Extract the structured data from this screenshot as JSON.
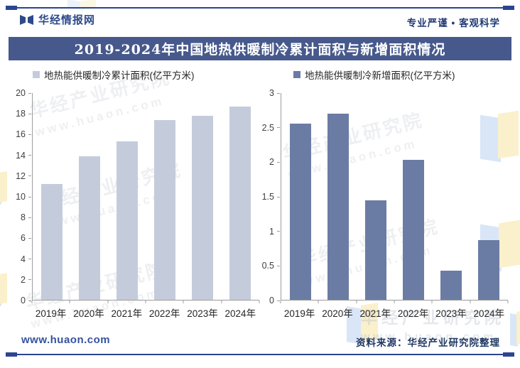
{
  "header": {
    "brand": "华经情报网",
    "tagline": "专业严谨 • 客观科学"
  },
  "banner": {
    "title": "2019-2024年中国地热供暖制冷累计面积与新增面积情况"
  },
  "watermark": {
    "org": "华经产业研究院",
    "url": "www.huaon.com"
  },
  "footer": {
    "website": "www.huaon.com",
    "source": "资料来源：华经产业研究院整理"
  },
  "colors": {
    "banner_bg": "#47598C",
    "rule": "#2B4590",
    "brand_text": "#2D4A8A",
    "cumulative_bar": "#C4CCDC",
    "new_bar": "#6B7CA4"
  },
  "chart_data": [
    {
      "type": "bar",
      "legend": "地热能供暖制冷累计面积(亿平方米)",
      "categories": [
        "2019年",
        "2020年",
        "2021年",
        "2022年",
        "2023年",
        "2024年"
      ],
      "values": [
        11.2,
        13.9,
        15.3,
        17.4,
        17.8,
        18.7
      ],
      "ylim": [
        0,
        20
      ],
      "yticks": [
        0,
        2,
        4,
        6,
        8,
        10,
        12,
        14,
        16,
        18,
        20
      ],
      "bar_color": "#C4CCDC",
      "grid": false,
      "legend_position": "top-left"
    },
    {
      "type": "bar",
      "legend": "地热能供暖制冷新增面积(亿平方米)",
      "categories": [
        "2019年",
        "2020年",
        "2021年",
        "2022年",
        "2023年",
        "2024年"
      ],
      "values": [
        2.56,
        2.7,
        1.44,
        2.03,
        0.42,
        0.87
      ],
      "ylim": [
        0,
        3
      ],
      "yticks": [
        0,
        0.5,
        1,
        1.5,
        2,
        2.5,
        3
      ],
      "bar_color": "#6B7CA4",
      "grid": false,
      "legend_position": "top-left"
    }
  ]
}
